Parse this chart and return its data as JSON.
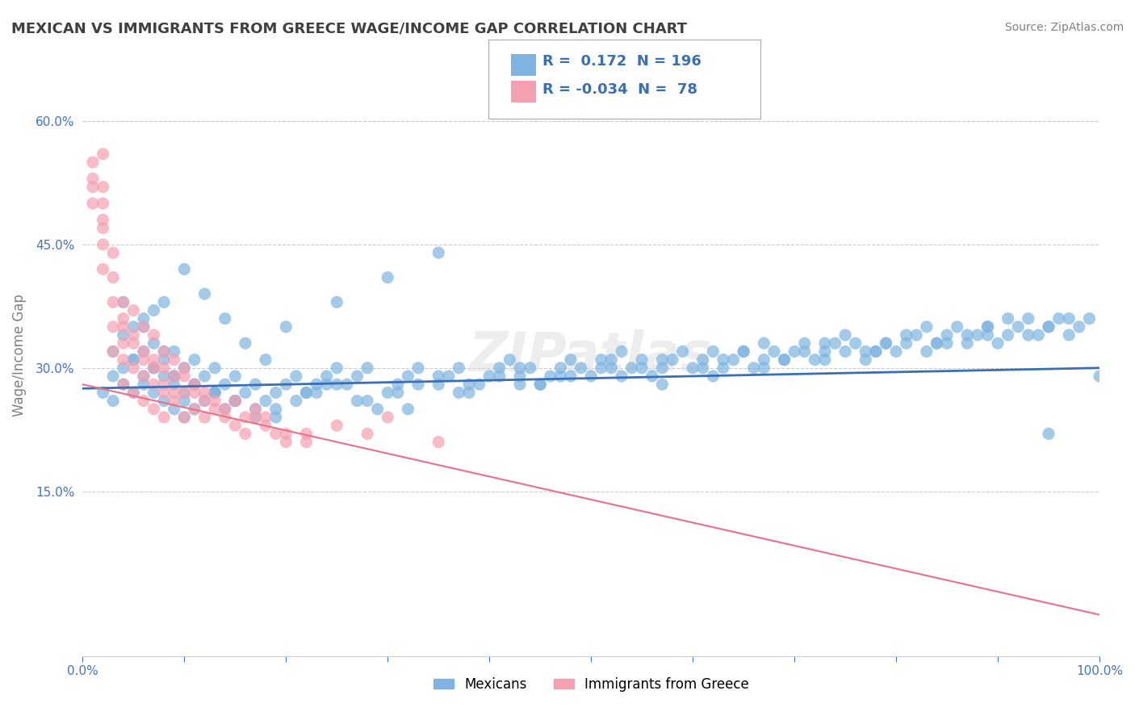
{
  "title": "MEXICAN VS IMMIGRANTS FROM GREECE WAGE/INCOME GAP CORRELATION CHART",
  "source": "Source: ZipAtlas.com",
  "xlabel": "",
  "ylabel": "Wage/Income Gap",
  "xlim": [
    0.0,
    1.0
  ],
  "ylim": [
    -0.05,
    0.68
  ],
  "yticks": [
    0.15,
    0.3,
    0.45,
    0.6
  ],
  "ytick_labels": [
    "15.0%",
    "30.0%",
    "45.0%",
    "60.0%"
  ],
  "xticks": [
    0.0,
    0.1,
    0.2,
    0.3,
    0.4,
    0.5,
    0.6,
    0.7,
    0.8,
    0.9,
    1.0
  ],
  "xtick_labels": [
    "0.0%",
    "",
    "",
    "",
    "",
    "",
    "",
    "",
    "",
    "",
    "100.0%"
  ],
  "blue_color": "#7EB4E2",
  "pink_color": "#F4A0B0",
  "blue_line_color": "#3A6EB5",
  "pink_line_color": "#E8728A",
  "pink_line_dash_color": "#D0A0B0",
  "watermark": "ZIPatlas",
  "legend_R1": "0.172",
  "legend_N1": "196",
  "legend_R2": "-0.034",
  "legend_N2": "78",
  "blue_R": 0.172,
  "blue_N": 196,
  "pink_R": -0.034,
  "pink_N": 78,
  "blue_intercept": 0.275,
  "blue_slope": 0.025,
  "pink_intercept": 0.28,
  "pink_slope": -0.28,
  "blue_scatter_x": [
    0.02,
    0.03,
    0.03,
    0.04,
    0.04,
    0.05,
    0.05,
    0.06,
    0.06,
    0.06,
    0.07,
    0.07,
    0.07,
    0.08,
    0.08,
    0.08,
    0.09,
    0.09,
    0.09,
    0.1,
    0.1,
    0.1,
    0.11,
    0.11,
    0.12,
    0.12,
    0.13,
    0.13,
    0.14,
    0.14,
    0.15,
    0.15,
    0.16,
    0.17,
    0.18,
    0.19,
    0.2,
    0.21,
    0.22,
    0.23,
    0.24,
    0.25,
    0.26,
    0.27,
    0.28,
    0.3,
    0.31,
    0.32,
    0.33,
    0.35,
    0.36,
    0.37,
    0.38,
    0.4,
    0.41,
    0.42,
    0.43,
    0.44,
    0.45,
    0.46,
    0.47,
    0.48,
    0.5,
    0.51,
    0.52,
    0.53,
    0.54,
    0.55,
    0.56,
    0.57,
    0.58,
    0.6,
    0.61,
    0.62,
    0.63,
    0.64,
    0.65,
    0.66,
    0.67,
    0.68,
    0.69,
    0.7,
    0.71,
    0.72,
    0.73,
    0.74,
    0.75,
    0.76,
    0.77,
    0.78,
    0.79,
    0.8,
    0.81,
    0.82,
    0.83,
    0.84,
    0.85,
    0.86,
    0.87,
    0.88,
    0.89,
    0.9,
    0.91,
    0.92,
    0.93,
    0.94,
    0.95,
    0.96,
    0.97,
    0.98,
    0.99,
    1.0,
    0.04,
    0.05,
    0.06,
    0.07,
    0.08,
    0.1,
    0.12,
    0.14,
    0.16,
    0.18,
    0.2,
    0.25,
    0.3,
    0.35,
    0.04,
    0.06,
    0.08,
    0.09,
    0.1,
    0.11,
    0.13,
    0.15,
    0.17,
    0.19,
    0.22,
    0.24,
    0.28,
    0.32,
    0.38,
    0.43,
    0.48,
    0.52,
    0.57,
    0.62,
    0.67,
    0.73,
    0.78,
    0.84,
    0.89,
    0.95,
    0.03,
    0.05,
    0.07,
    0.09,
    0.11,
    0.13,
    0.15,
    0.17,
    0.19,
    0.21,
    0.23,
    0.25,
    0.27,
    0.29,
    0.31,
    0.33,
    0.35,
    0.37,
    0.39,
    0.41,
    0.43,
    0.45,
    0.47,
    0.49,
    0.51,
    0.53,
    0.55,
    0.57,
    0.59,
    0.61,
    0.63,
    0.65,
    0.67,
    0.69,
    0.71,
    0.73,
    0.75,
    0.77,
    0.79,
    0.81,
    0.83,
    0.85,
    0.87,
    0.89,
    0.91,
    0.93,
    0.95,
    0.97
  ],
  "blue_scatter_y": [
    0.27,
    0.29,
    0.26,
    0.3,
    0.28,
    0.31,
    0.27,
    0.32,
    0.29,
    0.28,
    0.33,
    0.3,
    0.27,
    0.31,
    0.29,
    0.26,
    0.32,
    0.28,
    0.25,
    0.3,
    0.27,
    0.24,
    0.31,
    0.28,
    0.29,
    0.26,
    0.3,
    0.27,
    0.28,
    0.25,
    0.29,
    0.26,
    0.27,
    0.28,
    0.26,
    0.27,
    0.28,
    0.29,
    0.27,
    0.28,
    0.29,
    0.3,
    0.28,
    0.29,
    0.3,
    0.27,
    0.28,
    0.29,
    0.3,
    0.28,
    0.29,
    0.3,
    0.28,
    0.29,
    0.3,
    0.31,
    0.29,
    0.3,
    0.28,
    0.29,
    0.3,
    0.31,
    0.29,
    0.3,
    0.31,
    0.32,
    0.3,
    0.31,
    0.29,
    0.3,
    0.31,
    0.3,
    0.31,
    0.32,
    0.3,
    0.31,
    0.32,
    0.3,
    0.31,
    0.32,
    0.31,
    0.32,
    0.33,
    0.31,
    0.32,
    0.33,
    0.32,
    0.33,
    0.31,
    0.32,
    0.33,
    0.32,
    0.33,
    0.34,
    0.32,
    0.33,
    0.34,
    0.35,
    0.33,
    0.34,
    0.35,
    0.33,
    0.34,
    0.35,
    0.36,
    0.34,
    0.35,
    0.36,
    0.34,
    0.35,
    0.36,
    0.29,
    0.34,
    0.35,
    0.36,
    0.37,
    0.38,
    0.42,
    0.39,
    0.36,
    0.33,
    0.31,
    0.35,
    0.38,
    0.41,
    0.44,
    0.38,
    0.35,
    0.32,
    0.29,
    0.26,
    0.25,
    0.27,
    0.26,
    0.24,
    0.25,
    0.27,
    0.28,
    0.26,
    0.25,
    0.27,
    0.28,
    0.29,
    0.3,
    0.28,
    0.29,
    0.3,
    0.31,
    0.32,
    0.33,
    0.34,
    0.22,
    0.32,
    0.31,
    0.3,
    0.29,
    0.28,
    0.27,
    0.26,
    0.25,
    0.24,
    0.26,
    0.27,
    0.28,
    0.26,
    0.25,
    0.27,
    0.28,
    0.29,
    0.27,
    0.28,
    0.29,
    0.3,
    0.28,
    0.29,
    0.3,
    0.31,
    0.29,
    0.3,
    0.31,
    0.32,
    0.3,
    0.31,
    0.32,
    0.33,
    0.31,
    0.32,
    0.33,
    0.34,
    0.32,
    0.33,
    0.34,
    0.35,
    0.33,
    0.34,
    0.35,
    0.36,
    0.34,
    0.35,
    0.36
  ],
  "pink_scatter_x": [
    0.01,
    0.01,
    0.02,
    0.02,
    0.02,
    0.02,
    0.03,
    0.03,
    0.03,
    0.04,
    0.04,
    0.04,
    0.04,
    0.05,
    0.05,
    0.05,
    0.06,
    0.06,
    0.06,
    0.07,
    0.07,
    0.07,
    0.08,
    0.08,
    0.08,
    0.09,
    0.09,
    0.1,
    0.1,
    0.1,
    0.11,
    0.11,
    0.12,
    0.12,
    0.13,
    0.14,
    0.15,
    0.16,
    0.17,
    0.18,
    0.2,
    0.22,
    0.25,
    0.28,
    0.3,
    0.35,
    0.01,
    0.01,
    0.02,
    0.02,
    0.02,
    0.03,
    0.03,
    0.04,
    0.04,
    0.05,
    0.05,
    0.06,
    0.06,
    0.07,
    0.07,
    0.08,
    0.08,
    0.09,
    0.09,
    0.1,
    0.11,
    0.12,
    0.13,
    0.14,
    0.15,
    0.16,
    0.17,
    0.18,
    0.19,
    0.2,
    0.22
  ],
  "pink_scatter_y": [
    0.53,
    0.5,
    0.52,
    0.48,
    0.45,
    0.42,
    0.38,
    0.35,
    0.32,
    0.36,
    0.33,
    0.31,
    0.28,
    0.34,
    0.3,
    0.27,
    0.32,
    0.29,
    0.26,
    0.31,
    0.28,
    0.25,
    0.3,
    0.27,
    0.24,
    0.29,
    0.26,
    0.3,
    0.27,
    0.24,
    0.28,
    0.25,
    0.27,
    0.24,
    0.26,
    0.25,
    0.26,
    0.24,
    0.25,
    0.24,
    0.22,
    0.21,
    0.23,
    0.22,
    0.24,
    0.21,
    0.55,
    0.52,
    0.56,
    0.5,
    0.47,
    0.44,
    0.41,
    0.38,
    0.35,
    0.37,
    0.33,
    0.35,
    0.31,
    0.34,
    0.3,
    0.32,
    0.28,
    0.31,
    0.27,
    0.29,
    0.27,
    0.26,
    0.25,
    0.24,
    0.23,
    0.22,
    0.24,
    0.23,
    0.22,
    0.21,
    0.22
  ],
  "background_color": "#FFFFFF",
  "grid_color": "#CCCCCC",
  "title_color": "#404040",
  "axis_label_color": "#808080",
  "tick_label_color": "#4472C4",
  "source_color": "#808080"
}
